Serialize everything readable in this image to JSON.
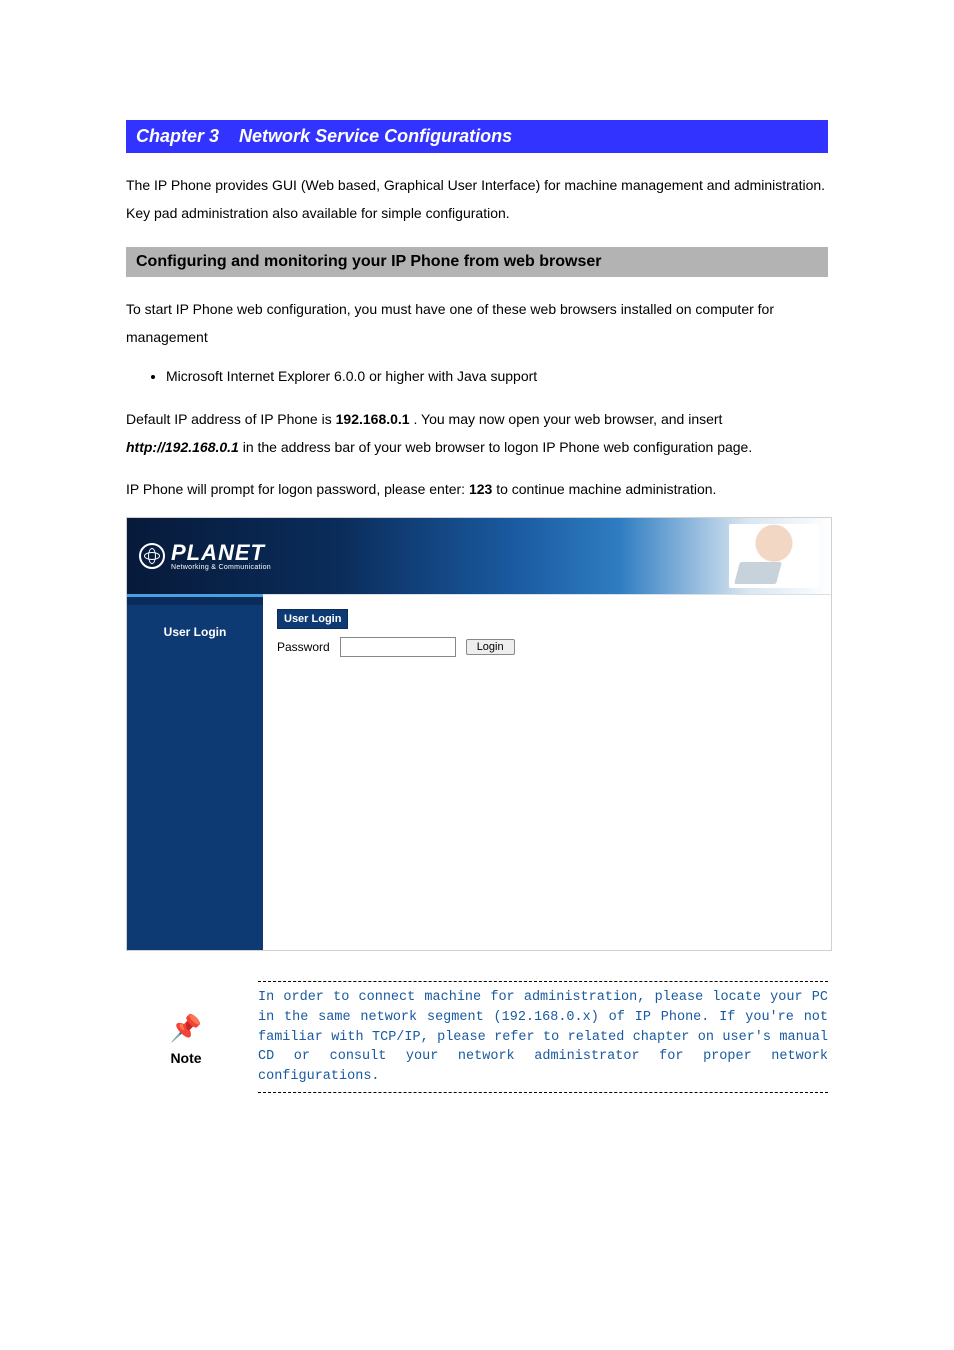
{
  "chapter": {
    "number": "3",
    "title": "Network Service Configurations"
  },
  "intro": "The IP Phone provides GUI (Web based, Graphical User Interface) for machine management and administration. Key pad administration also available for simple configuration.",
  "section": "Configuring and monitoring your IP Phone from web browser",
  "section_intro": "To start IP Phone web configuration, you must have one of these web browsers installed on computer for management",
  "bullet1": "Microsoft Internet Explorer 6.0.0 or higher with Java support",
  "p1a": "Default IP address of IP Phone is ",
  "p1_ip": "192.168.0.1",
  "p1b": ". You may now open your web browser, and insert ",
  "p1_url": "http://192.168.0.1",
  "p1c": " in the address bar of your web browser to logon IP Phone web configuration page.",
  "p2a": "IP Phone will prompt for logon password, please enter: ",
  "p2_pw": "123",
  "p2b": " to continue machine administration.",
  "shot": {
    "brand": "PLANET",
    "tagline": "Networking & Communication",
    "side_label": "User Login",
    "box_title": "User Login",
    "password_label": "Password",
    "login_btn": "Login"
  },
  "note": {
    "label": "Note",
    "text": "In order to connect machine for administration, please locate your PC in the same network segment (192.168.0.x) of IP Phone. If you're not familiar with TCP/IP, please refer to related chapter on user's manual CD or consult your network administrator for proper network configurations."
  }
}
